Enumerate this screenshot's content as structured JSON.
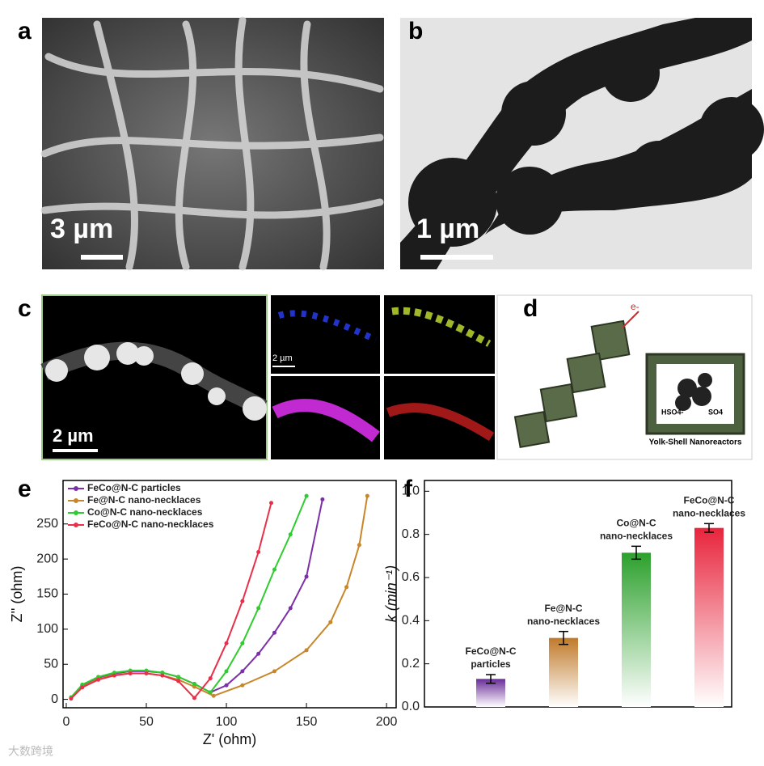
{
  "panels": {
    "a": {
      "label": "a",
      "scale_bar": "3 µm"
    },
    "b": {
      "label": "b",
      "scale_bar": "1 µm"
    },
    "c": {
      "label": "c",
      "scale_bar": "2 µm",
      "small_scale_bar": "2 µm"
    },
    "d": {
      "label": "d",
      "electron": "e-",
      "ion_1": "HSO4-",
      "ion_2": "SO4",
      "caption": "Yolk-Shell Nanoreactors"
    }
  },
  "watermark": "大数跨境",
  "chart_data": [
    {
      "type": "line",
      "panel_label": "e",
      "x_label": "Z' (ohm)",
      "y_label": "Z'' (ohm)",
      "xlim": [
        -2,
        206
      ],
      "ylim": [
        -12,
        312
      ],
      "xticks": [
        0,
        50,
        100,
        150,
        200
      ],
      "yticks": [
        0,
        50,
        100,
        150,
        200,
        250
      ],
      "series": [
        {
          "name": "FeCo@N-C particles",
          "color": "#7b2fa8",
          "x": [
            3,
            10,
            20,
            30,
            40,
            50,
            60,
            70,
            80,
            90,
            100,
            110,
            120,
            130,
            140,
            150,
            160
          ],
          "values": [
            2,
            20,
            31,
            37,
            40,
            40,
            38,
            32,
            22,
            10,
            20,
            40,
            65,
            95,
            130,
            175,
            285
          ]
        },
        {
          "name": "Fe@N-C nano-necklaces",
          "color": "#c8862a",
          "x": [
            3,
            10,
            20,
            30,
            40,
            50,
            60,
            70,
            80,
            92,
            110,
            130,
            150,
            165,
            175,
            183,
            188
          ],
          "values": [
            2,
            18,
            29,
            35,
            37,
            37,
            34,
            28,
            18,
            5,
            20,
            40,
            70,
            110,
            160,
            220,
            290
          ]
        },
        {
          "name": "Co@N-C nano-necklaces",
          "color": "#2ecc2e",
          "x": [
            3,
            10,
            20,
            30,
            40,
            50,
            60,
            70,
            80,
            90,
            100,
            110,
            120,
            130,
            140,
            150
          ],
          "values": [
            3,
            21,
            32,
            38,
            41,
            41,
            38,
            32,
            22,
            10,
            40,
            80,
            130,
            185,
            235,
            290
          ]
        },
        {
          "name": "FeCo@N-C nano-necklaces",
          "color": "#e8304a",
          "x": [
            3,
            10,
            20,
            30,
            40,
            50,
            60,
            70,
            80,
            90,
            100,
            110,
            120,
            128
          ],
          "values": [
            1,
            17,
            28,
            34,
            37,
            37,
            34,
            26,
            2,
            30,
            80,
            140,
            210,
            280
          ]
        }
      ]
    },
    {
      "type": "bar",
      "panel_label": "f",
      "y_label": "k (min⁻¹)",
      "ylim": [
        0,
        1.05
      ],
      "yticks": [
        {
          "value": 0,
          "label": "0.0"
        },
        {
          "value": 0.2,
          "label": "0.2"
        },
        {
          "value": 0.4,
          "label": "0.4"
        },
        {
          "value": 0.6,
          "label": "0.6"
        },
        {
          "value": 0.8,
          "label": "0.8"
        },
        {
          "value": 1,
          "label": "1.0"
        }
      ],
      "categories": [
        [
          "FeCo@N-C",
          "particles"
        ],
        [
          "Fe@N-C",
          "nano-necklaces"
        ],
        [
          "Co@N-C",
          "nano-necklaces"
        ],
        [
          "FeCo@N-C",
          "nano-necklaces"
        ]
      ],
      "values": [
        0.13,
        0.32,
        0.715,
        0.83
      ],
      "errors": [
        0.02,
        0.03,
        0.03,
        0.02
      ],
      "colors": [
        "#6a2d9a",
        "#c07a2a",
        "#2ca02c",
        "#e8243c"
      ]
    }
  ]
}
